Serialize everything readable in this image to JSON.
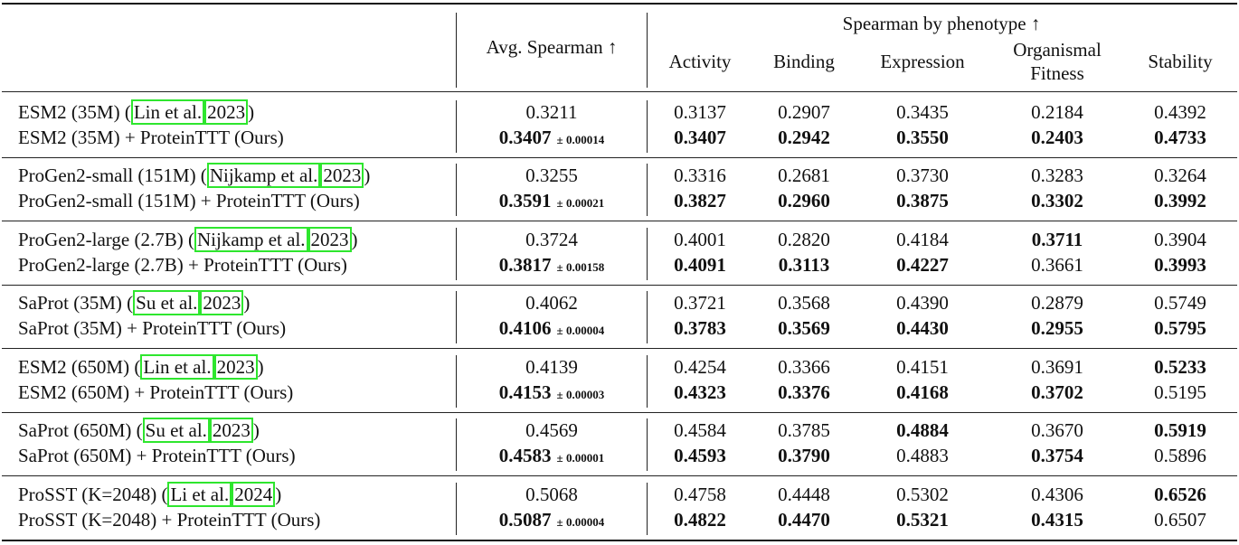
{
  "table": {
    "header": {
      "avg_label": "Avg. Spearman ↑",
      "group_label": "Spearman by phenotype ↑",
      "columns": [
        "Activity",
        "Binding",
        "Expression",
        "Organismal",
        "Fitness",
        "Stability"
      ]
    },
    "groups": [
      {
        "baseline": {
          "model": "ESM2 (35M) (",
          "cite_author": "Lin et al.",
          "cite_year": "2023",
          "close": ")",
          "avg": "0.3211",
          "values": [
            "0.3137",
            "0.2907",
            "0.3435",
            "0.2184",
            "0.4392"
          ],
          "bold": [
            false,
            false,
            false,
            false,
            false
          ]
        },
        "ours": {
          "model": "ESM2 (35M) + ProteinTTT (Ours)",
          "avg": "0.3407",
          "std": "± 0.00014",
          "values": [
            "0.3407",
            "0.2942",
            "0.3550",
            "0.2403",
            "0.4733"
          ],
          "bold": [
            true,
            true,
            true,
            true,
            true
          ]
        }
      },
      {
        "baseline": {
          "model": "ProGen2-small (151M) (",
          "cite_author": "Nijkamp et al.",
          "cite_year": "2023",
          "close": ")",
          "avg": "0.3255",
          "values": [
            "0.3316",
            "0.2681",
            "0.3730",
            "0.3283",
            "0.3264"
          ],
          "bold": [
            false,
            false,
            false,
            false,
            false
          ]
        },
        "ours": {
          "model": "ProGen2-small (151M) + ProteinTTT (Ours)",
          "avg": "0.3591",
          "std": "± 0.00021",
          "values": [
            "0.3827",
            "0.2960",
            "0.3875",
            "0.3302",
            "0.3992"
          ],
          "bold": [
            true,
            true,
            true,
            true,
            true
          ]
        }
      },
      {
        "baseline": {
          "model": "ProGen2-large (2.7B) (",
          "cite_author": "Nijkamp et al.",
          "cite_year": "2023",
          "close": ")",
          "avg": "0.3724",
          "values": [
            "0.4001",
            "0.2820",
            "0.4184",
            "0.3711",
            "0.3904"
          ],
          "bold": [
            false,
            false,
            false,
            true,
            false
          ]
        },
        "ours": {
          "model": "ProGen2-large (2.7B) + ProteinTTT (Ours)",
          "avg": "0.3817",
          "std": "± 0.00158",
          "values": [
            "0.4091",
            "0.3113",
            "0.4227",
            "0.3661",
            "0.3993"
          ],
          "bold": [
            true,
            true,
            true,
            false,
            true
          ]
        }
      },
      {
        "baseline": {
          "model": "SaProt (35M) (",
          "cite_author": "Su et al.",
          "cite_year": "2023",
          "close": ")",
          "avg": "0.4062",
          "values": [
            "0.3721",
            "0.3568",
            "0.4390",
            "0.2879",
            "0.5749"
          ],
          "bold": [
            false,
            false,
            false,
            false,
            false
          ]
        },
        "ours": {
          "model": "SaProt (35M) + ProteinTTT (Ours)",
          "avg": "0.4106",
          "std": "± 0.00004",
          "values": [
            "0.3783",
            "0.3569",
            "0.4430",
            "0.2955",
            "0.5795"
          ],
          "bold": [
            true,
            true,
            true,
            true,
            true
          ]
        }
      },
      {
        "baseline": {
          "model": "ESM2 (650M) (",
          "cite_author": "Lin et al.",
          "cite_year": "2023",
          "close": ")",
          "avg": "0.4139",
          "values": [
            "0.4254",
            "0.3366",
            "0.4151",
            "0.3691",
            "0.5233"
          ],
          "bold": [
            false,
            false,
            false,
            false,
            true
          ]
        },
        "ours": {
          "model": "ESM2 (650M) + ProteinTTT (Ours)",
          "avg": "0.4153",
          "std": "± 0.00003",
          "values": [
            "0.4323",
            "0.3376",
            "0.4168",
            "0.3702",
            "0.5195"
          ],
          "bold": [
            true,
            true,
            true,
            true,
            false
          ]
        }
      },
      {
        "baseline": {
          "model": "SaProt (650M) (",
          "cite_author": "Su et al.",
          "cite_year": "2023",
          "close": ")",
          "avg": "0.4569",
          "values": [
            "0.4584",
            "0.3785",
            "0.4884",
            "0.3670",
            "0.5919"
          ],
          "bold": [
            false,
            false,
            true,
            false,
            true
          ]
        },
        "ours": {
          "model": "SaProt (650M) + ProteinTTT (Ours)",
          "avg": "0.4583",
          "std": "± 0.00001",
          "values": [
            "0.4593",
            "0.3790",
            "0.4883",
            "0.3754",
            "0.5896"
          ],
          "bold": [
            true,
            true,
            false,
            true,
            false
          ]
        }
      },
      {
        "baseline": {
          "model": "ProSST (K=2048) (",
          "cite_author": "Li et al.",
          "cite_year": "2024",
          "close": ")",
          "avg": "0.5068",
          "values": [
            "0.4758",
            "0.4448",
            "0.5302",
            "0.4306",
            "0.6526"
          ],
          "bold": [
            false,
            false,
            false,
            false,
            true
          ]
        },
        "ours": {
          "model": "ProSST (K=2048) + ProteinTTT (Ours)",
          "avg": "0.5087",
          "std": "± 0.00004",
          "values": [
            "0.4822",
            "0.4470",
            "0.5321",
            "0.4315",
            "0.6507"
          ],
          "bold": [
            true,
            true,
            true,
            true,
            false
          ]
        }
      }
    ]
  }
}
